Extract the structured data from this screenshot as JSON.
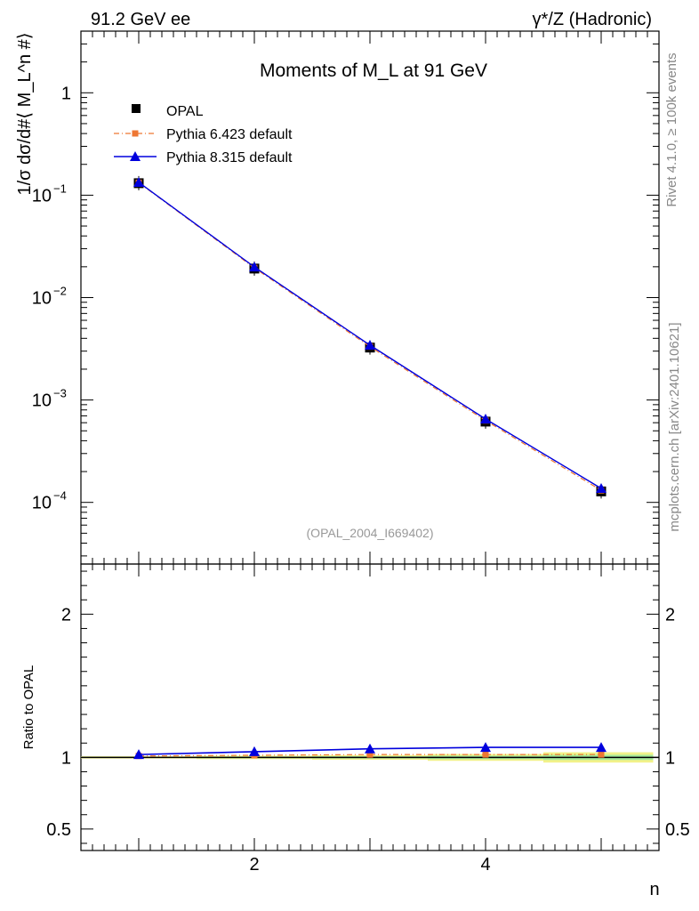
{
  "header": {
    "left": "91.2 GeV ee",
    "right": "γ*/Z (Hadronic)"
  },
  "side_text": {
    "rivet": "Rivet 4.1.0, ≥ 100k events",
    "mcplots": "mcplots.cern.ch [arXiv:2401.10621]"
  },
  "chart_data": {
    "type": "line",
    "title": "Moments of M_L at 91 GeV",
    "xlabel": "n",
    "ylabel": "1/σ dσ/d#⟨ M_L^n #⟩",
    "ratio_ylabel": "Ratio to OPAL",
    "analysis_tag": "(OPAL_2004_I669402)",
    "x": [
      1,
      2,
      3,
      4,
      5
    ],
    "xlim": [
      0.5,
      5.5
    ],
    "ylim": [
      2.5e-05,
      4
    ],
    "yscale": "log",
    "ratio_ylim": [
      0.35,
      2.35
    ],
    "x_ticks": [
      "2",
      "4"
    ],
    "main_y_ticks": [
      {
        "exp": "-4",
        "value": 0.0001
      },
      {
        "exp": "-3",
        "value": 0.001
      },
      {
        "exp": "-2",
        "value": 0.01
      },
      {
        "exp": "-1",
        "value": 0.1
      },
      {
        "exp": "",
        "value": 1,
        "label": "1"
      }
    ],
    "ratio_y_ticks": [
      {
        "label": "0.5",
        "value": 0.5
      },
      {
        "label": "1",
        "value": 1
      },
      {
        "label": "2",
        "value": 2
      }
    ],
    "series": [
      {
        "name": "OPAL",
        "color": "#000000",
        "marker": "square",
        "values": [
          0.131,
          0.0192,
          0.00325,
          0.000615,
          0.000128
        ],
        "ratio": [
          1,
          1,
          1,
          1,
          1
        ]
      },
      {
        "name": "Pythia 6.423 default",
        "color": "#ee7733",
        "marker": "square-small",
        "dash": "dashdot",
        "values": [
          0.1325,
          0.0195,
          0.00332,
          0.00063,
          0.000131
        ],
        "ratio": [
          1.01,
          1.015,
          1.02,
          1.02,
          1.02
        ]
      },
      {
        "name": "Pythia 8.315 default",
        "color": "#0000dd",
        "marker": "triangle",
        "values": [
          0.1335,
          0.0199,
          0.00343,
          0.000652,
          0.000137
        ],
        "ratio": [
          1.02,
          1.04,
          1.06,
          1.07,
          1.07
        ]
      }
    ]
  }
}
